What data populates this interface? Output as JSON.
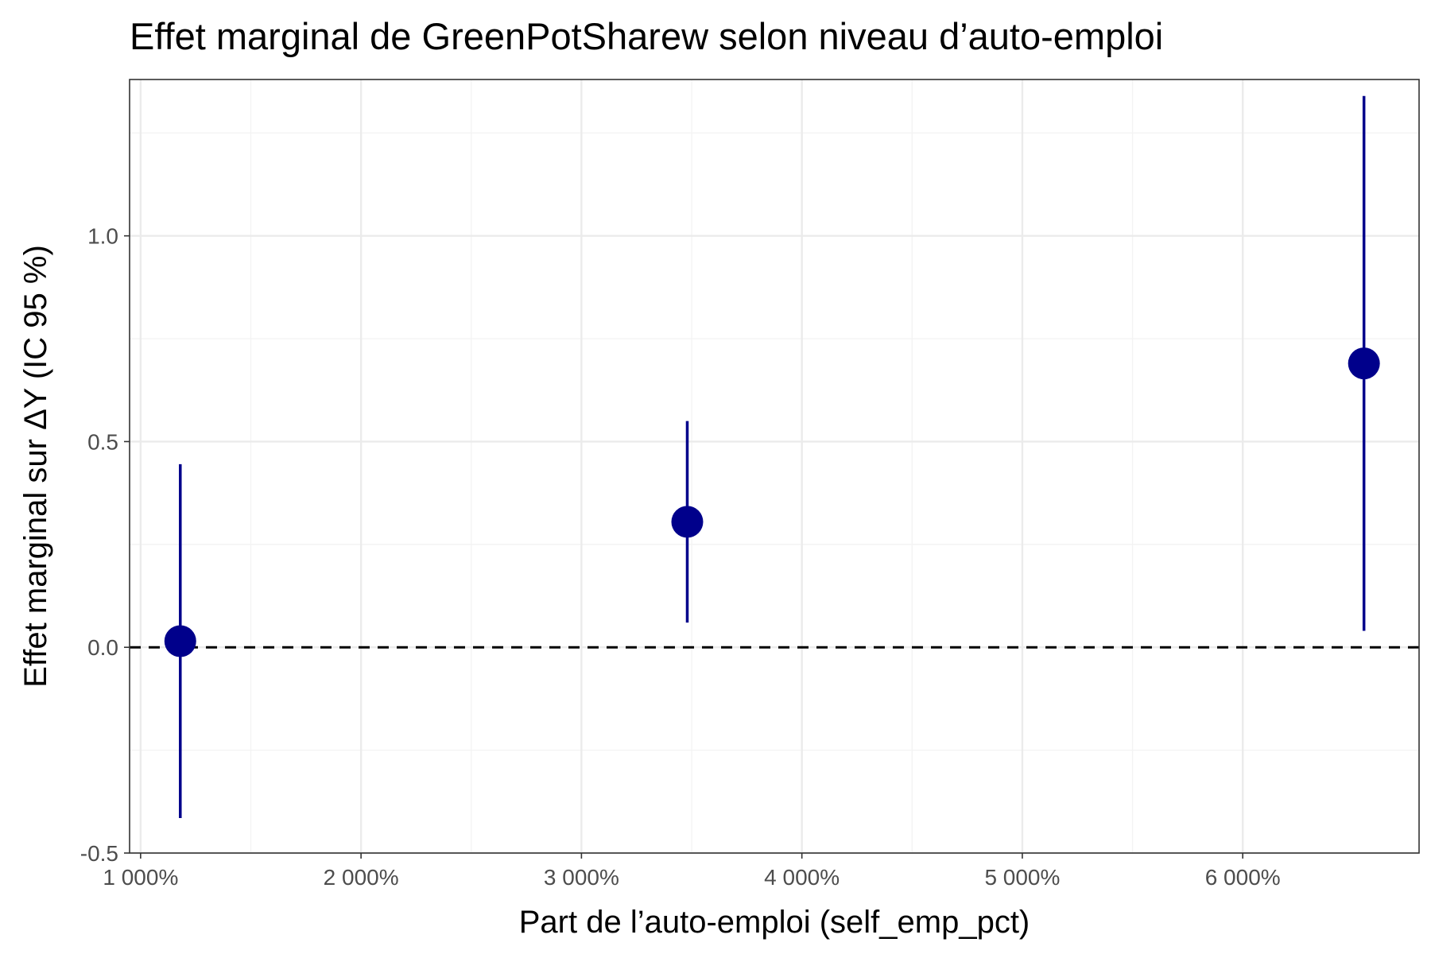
{
  "chart_data": {
    "type": "scatter",
    "title": "Effet marginal de GreenPotSharew selon niveau d’auto-emploi",
    "xlabel": "Part de l’auto-emploi (self_emp_pct)",
    "ylabel": "Effet marginal sur ΔY (IC 95 %)",
    "xlim": [
      950,
      6800
    ],
    "ylim": [
      -0.5,
      1.38
    ],
    "x_ticks": [
      {
        "value": 1000,
        "label": "1 000%"
      },
      {
        "value": 2000,
        "label": "2 000%"
      },
      {
        "value": 3000,
        "label": "3 000%"
      },
      {
        "value": 4000,
        "label": "4 000%"
      },
      {
        "value": 5000,
        "label": "5 000%"
      },
      {
        "value": 6000,
        "label": "6 000%"
      }
    ],
    "y_ticks": [
      {
        "value": -0.5,
        "label": "-0.5"
      },
      {
        "value": 0.0,
        "label": "0.0"
      },
      {
        "value": 0.5,
        "label": "0.5"
      },
      {
        "value": 1.0,
        "label": "1.0"
      }
    ],
    "reference_line": {
      "y": 0,
      "style": "dashed"
    },
    "grid": true,
    "series": [
      {
        "color": "#00008b",
        "points": [
          {
            "x": 1180,
            "y": 0.015,
            "ci_low": -0.415,
            "ci_high": 0.445
          },
          {
            "x": 3480,
            "y": 0.305,
            "ci_low": 0.06,
            "ci_high": 0.55
          },
          {
            "x": 6550,
            "y": 0.69,
            "ci_low": 0.04,
            "ci_high": 1.34
          }
        ]
      }
    ]
  }
}
